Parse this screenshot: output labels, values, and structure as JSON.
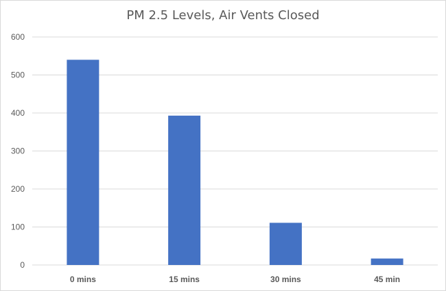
{
  "chart_data": {
    "type": "bar",
    "title": "PM 2.5 Levels, Air Vents Closed",
    "xlabel": "",
    "ylabel": "",
    "categories": [
      "0 mins",
      "15 mins",
      "30 mins",
      "45 min"
    ],
    "values": [
      540,
      393,
      111,
      17
    ],
    "ylim": [
      0,
      600
    ],
    "yticks": [
      0,
      100,
      200,
      300,
      400,
      500,
      600
    ],
    "grid": true,
    "legend": "none",
    "bar_color": "#4472c4",
    "grid_color": "#d9d9d9"
  }
}
